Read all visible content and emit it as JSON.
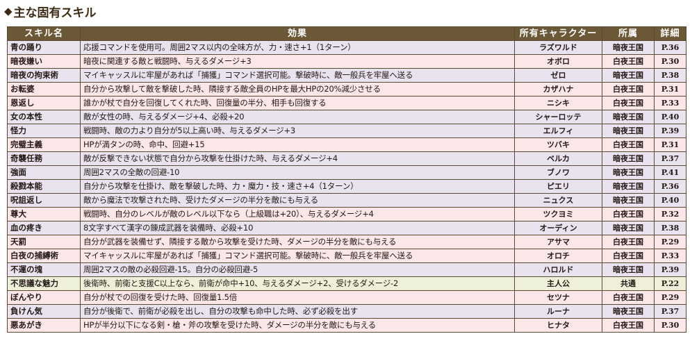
{
  "heading": {
    "marker": "◆",
    "title": "主な固有スキル"
  },
  "table": {
    "headers": [
      "スキル名",
      "効果",
      "所有キャラクター",
      "所属",
      "詳細"
    ],
    "rows": [
      {
        "name": "青の踊り",
        "effect": "応援コマンドを使用可。周囲2マス以内の全味方が、力・速さ+1（1ターン）",
        "owner": "ラズワルド",
        "affiliation": "暗夜王国",
        "page": "P.36",
        "tint": "purple"
      },
      {
        "name": "暗夜嫌い",
        "effect": "暗夜に関連する敵と戦闘時、与えるダメージ+3",
        "owner": "オボロ",
        "affiliation": "白夜王国",
        "page": "P.30",
        "tint": "pink"
      },
      {
        "name": "暗夜の拘束術",
        "effect": "マイキャッスルに牢屋があれば「捕獲」コマンド選択可能。撃破時に、敵一般兵を牢屋へ送る",
        "owner": "ゼロ",
        "affiliation": "暗夜王国",
        "page": "P.38",
        "tint": "purple"
      },
      {
        "name": "お転婆",
        "effect": "自分から攻撃して敵を撃破した時、隣接する敵全員のHPを最大HPの20%減少させる",
        "owner": "カザハナ",
        "affiliation": "白夜王国",
        "page": "P.31",
        "tint": "pink"
      },
      {
        "name": "恩返し",
        "effect": "誰かが杖で自分を回復してくれた時、回復量の半分、相手も回復する",
        "owner": "ニシキ",
        "affiliation": "白夜王国",
        "page": "P.33",
        "tint": "pink"
      },
      {
        "name": "女の本性",
        "effect": "敵が女性の時、与えるダメージ+4、必殺+20",
        "owner": "シャーロッテ",
        "affiliation": "暗夜王国",
        "page": "P.40",
        "tint": "purple"
      },
      {
        "name": "怪力",
        "effect": "戦闘時、敵の力より自分が5以上高い時、与えるダメージ+3",
        "owner": "エルフィ",
        "affiliation": "暗夜王国",
        "page": "P.39",
        "tint": "purple"
      },
      {
        "name": "完璧主義",
        "effect": "HPが満タンの時、命中、回避+15",
        "owner": "ツバキ",
        "affiliation": "白夜王国",
        "page": "P.31",
        "tint": "pink"
      },
      {
        "name": "奇襲任務",
        "effect": "敵が反撃できない状態で自分から攻撃を仕掛けた時、与えるダメージ+4",
        "owner": "ベルカ",
        "affiliation": "暗夜王国",
        "page": "P.37",
        "tint": "purple"
      },
      {
        "name": "強面",
        "effect": "周囲2マスの全敵の回避-10",
        "owner": "ブノワ",
        "affiliation": "暗夜王国",
        "page": "P.41",
        "tint": "purple"
      },
      {
        "name": "殺戮本能",
        "effect": "自分から攻撃を仕掛け、敵を撃破した時、力・魔力・技・速さ+4（1ターン）",
        "owner": "ピエリ",
        "affiliation": "暗夜王国",
        "page": "P.36",
        "tint": "purple"
      },
      {
        "name": "呪詛返し",
        "effect": "敵から魔法で攻撃された時、受けたダメージの半分を敵にも与える",
        "owner": "ニュクス",
        "affiliation": "暗夜王国",
        "page": "P.40",
        "tint": "purple"
      },
      {
        "name": "尊大",
        "effect": "戦闘時、自分のレベルが敵のレベル以下なら（上級職は+20）、与えるダメージ+4",
        "owner": "ツクヨミ",
        "affiliation": "白夜王国",
        "page": "P.32",
        "tint": "pink"
      },
      {
        "name": "血の疼き",
        "effect": "8文字すべて漢字の錬成武器を装備時、必殺+10",
        "owner": "オーディン",
        "affiliation": "暗夜王国",
        "page": "P.38",
        "tint": "purple"
      },
      {
        "name": "天罰",
        "effect": "自分が武器を装備せず、隣接する敵から攻撃を受けた時、ダメージの半分を敵にも与える",
        "owner": "アサマ",
        "affiliation": "白夜王国",
        "page": "P.29",
        "tint": "pink"
      },
      {
        "name": "白夜の捕縛術",
        "effect": "マイキャッスルに牢屋があれば「捕獲」コマンド選択可能。撃破時に、敵一般兵を牢屋へ送る",
        "owner": "オロチ",
        "affiliation": "白夜王国",
        "page": "P.33",
        "tint": "pink"
      },
      {
        "name": "不運の塊",
        "effect": "周囲2マスの敵の必殺回避-15。自分の必殺回避-5",
        "owner": "ハロルド",
        "affiliation": "暗夜王国",
        "page": "P.39",
        "tint": "purple"
      },
      {
        "name": "不思議な魅力",
        "effect": "後衛時、前衛と支援C以上なら、前衛が命中+10、与えるダメージ+2、受けるダメージ-2",
        "owner": "主人公",
        "affiliation": "共通",
        "page": "P.22",
        "tint": "green"
      },
      {
        "name": "ぼんやり",
        "effect": "自分が杖での回復を受けた時、回復量1.5倍",
        "owner": "セツナ",
        "affiliation": "白夜王国",
        "page": "P.29",
        "tint": "pink"
      },
      {
        "name": "負けん気",
        "effect": "自分が後衛で、前衛が必殺を出し、自分の攻撃も命中した時、必ず必殺を出す",
        "owner": "ルーナ",
        "affiliation": "暗夜王国",
        "page": "P.37",
        "tint": "purple"
      },
      {
        "name": "悪あがき",
        "effect": "HPが半分以下になる剣・槍・斧の攻撃を受けた時、ダメージの半分を敵にも与える",
        "owner": "ヒナタ",
        "affiliation": "白夜王国",
        "page": "P.30",
        "tint": "pink"
      }
    ]
  }
}
